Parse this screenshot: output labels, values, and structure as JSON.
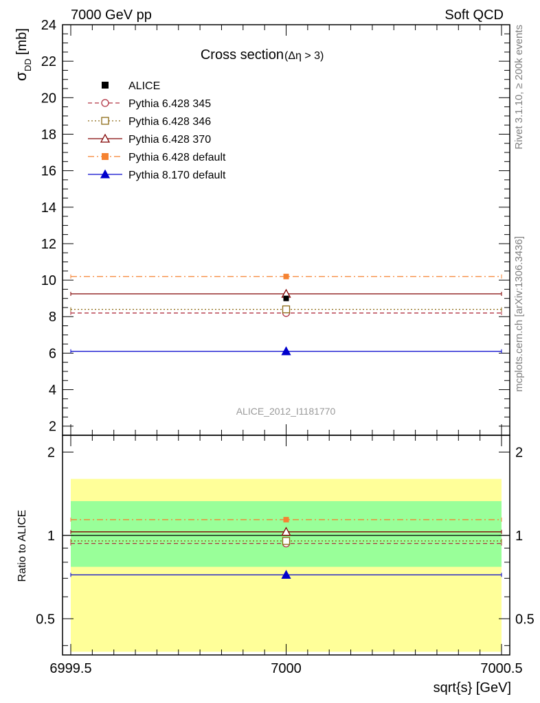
{
  "header": {
    "left": "7000 GeV pp",
    "right": "Soft QCD"
  },
  "side_labels": {
    "rivet": "Rivet 3.1.10, ≥ 200k events",
    "mcplots": "mcplots.cern.ch [arXiv:1306.3436]"
  },
  "chart_data": [
    {
      "type": "scatter",
      "title": "Cross section",
      "title_suffix": "(Δη > 3)",
      "watermark": "ALICE_2012_I1181770",
      "ylabel_symbol": "σ",
      "ylabel_sub": "DD",
      "ylabel_unit": "[mb]",
      "xlim": [
        6999.5,
        7000.5
      ],
      "ylim": [
        1.5,
        24
      ],
      "yticks": [
        2,
        4,
        6,
        8,
        10,
        12,
        14,
        16,
        18,
        20,
        22,
        24
      ],
      "legend_position": "top-left",
      "series": [
        {
          "name": "ALICE",
          "x": [
            7000
          ],
          "values": [
            9.0
          ],
          "color": "#000000",
          "marker": "square-filled",
          "line": "none"
        },
        {
          "name": "Pythia 6.428 345",
          "x": [
            7000
          ],
          "values": [
            8.2
          ],
          "color": "#b03040",
          "marker": "circle-open",
          "line": "dashed"
        },
        {
          "name": "Pythia 6.428 346",
          "x": [
            7000
          ],
          "values": [
            8.4
          ],
          "color": "#8b6914",
          "marker": "square-open",
          "line": "dotted"
        },
        {
          "name": "Pythia 6.428 370",
          "x": [
            7000
          ],
          "values": [
            9.25
          ],
          "color": "#800000",
          "marker": "triangle-open",
          "line": "solid"
        },
        {
          "name": "Pythia 6.428 default",
          "x": [
            7000
          ],
          "values": [
            10.2
          ],
          "color": "#f58231",
          "marker": "square-filled",
          "line": "dashdot"
        },
        {
          "name": "Pythia 8.170 default",
          "x": [
            7000
          ],
          "values": [
            6.1
          ],
          "color": "#0000cc",
          "marker": "triangle-filled",
          "line": "solid"
        }
      ]
    },
    {
      "type": "scatter",
      "ylabel": "Ratio to ALICE",
      "xlabel": "sqrt{s} [GeV]",
      "xlim": [
        6999.5,
        7000.5
      ],
      "xticks": [
        "6999.5",
        "7000",
        "7000.5"
      ],
      "ylim": [
        0.37,
        2.3
      ],
      "log_y": true,
      "yticks": [
        0.5,
        1,
        2
      ],
      "bands": [
        {
          "from": 0.38,
          "to": 1.6,
          "color": "#ffff99"
        },
        {
          "from": 0.77,
          "to": 1.33,
          "color": "#99ff99"
        }
      ],
      "reference": 1.0,
      "series": [
        {
          "name": "Pythia 6.428 345",
          "x": [
            7000
          ],
          "values": [
            0.935
          ],
          "color": "#b03040",
          "marker": "circle-open",
          "line": "dashed"
        },
        {
          "name": "Pythia 6.428 346",
          "x": [
            7000
          ],
          "values": [
            0.955
          ],
          "color": "#8b6914",
          "marker": "square-open",
          "line": "dotted"
        },
        {
          "name": "Pythia 6.428 370",
          "x": [
            7000
          ],
          "values": [
            1.03
          ],
          "color": "#800000",
          "marker": "triangle-open",
          "line": "solid"
        },
        {
          "name": "Pythia 6.428 default",
          "x": [
            7000
          ],
          "values": [
            1.14
          ],
          "color": "#f58231",
          "marker": "square-filled",
          "line": "dashdot"
        },
        {
          "name": "Pythia 8.170 default",
          "x": [
            7000
          ],
          "values": [
            0.72
          ],
          "color": "#0000cc",
          "marker": "triangle-filled",
          "line": "solid"
        }
      ]
    }
  ]
}
